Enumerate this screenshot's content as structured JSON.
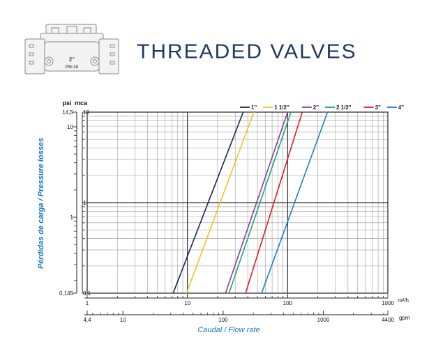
{
  "header": {
    "title": "THREADED VALVES",
    "valve_label_size": "2\"",
    "valve_label_pn": "PN-10"
  },
  "chart_data": {
    "type": "line",
    "scale": "log-log",
    "grid": true,
    "legend_position": "top-right",
    "ylabel": "Pérdidas de carga / Pressure losses",
    "xlabel": "Caudal / Flow rate",
    "x_unit_primary": "m³/h",
    "x_unit_secondary": "gpm",
    "y_unit_primary": "mca",
    "y_unit_secondary": "psi",
    "xlim": [
      1,
      1000
    ],
    "ylim": [
      0.1,
      10
    ],
    "x_ticks_primary": [
      "1",
      "10",
      "100",
      "1000"
    ],
    "x_ticks_secondary": [
      "4,4",
      "10",
      "100",
      "1000",
      "4400"
    ],
    "y_ticks_primary": [
      "0,1",
      "1",
      "10"
    ],
    "y_ticks_secondary": [
      "0,145",
      "1",
      "10",
      "14,5"
    ],
    "series": [
      {
        "name": "1\"",
        "color": "#1a2752",
        "points": [
          [
            7.2,
            0.1
          ],
          [
            36,
            10
          ]
        ]
      },
      {
        "name": "1 1/2\"",
        "color": "#f2c418",
        "points": [
          [
            9.8,
            0.1
          ],
          [
            46,
            10
          ]
        ]
      },
      {
        "name": "2\"",
        "color": "#8b3aa8",
        "points": [
          [
            24,
            0.1
          ],
          [
            100,
            10
          ]
        ]
      },
      {
        "name": "2 1/2\"",
        "color": "#1aa86a",
        "points": [
          [
            26,
            0.1
          ],
          [
            108,
            10
          ]
        ]
      },
      {
        "name": "3\"",
        "color": "#e01b24",
        "points": [
          [
            38,
            0.1
          ],
          [
            140,
            10
          ]
        ]
      },
      {
        "name": "4\"",
        "color": "#1f7fc3",
        "points": [
          [
            55,
            0.1
          ],
          [
            250,
            10
          ]
        ]
      }
    ]
  }
}
